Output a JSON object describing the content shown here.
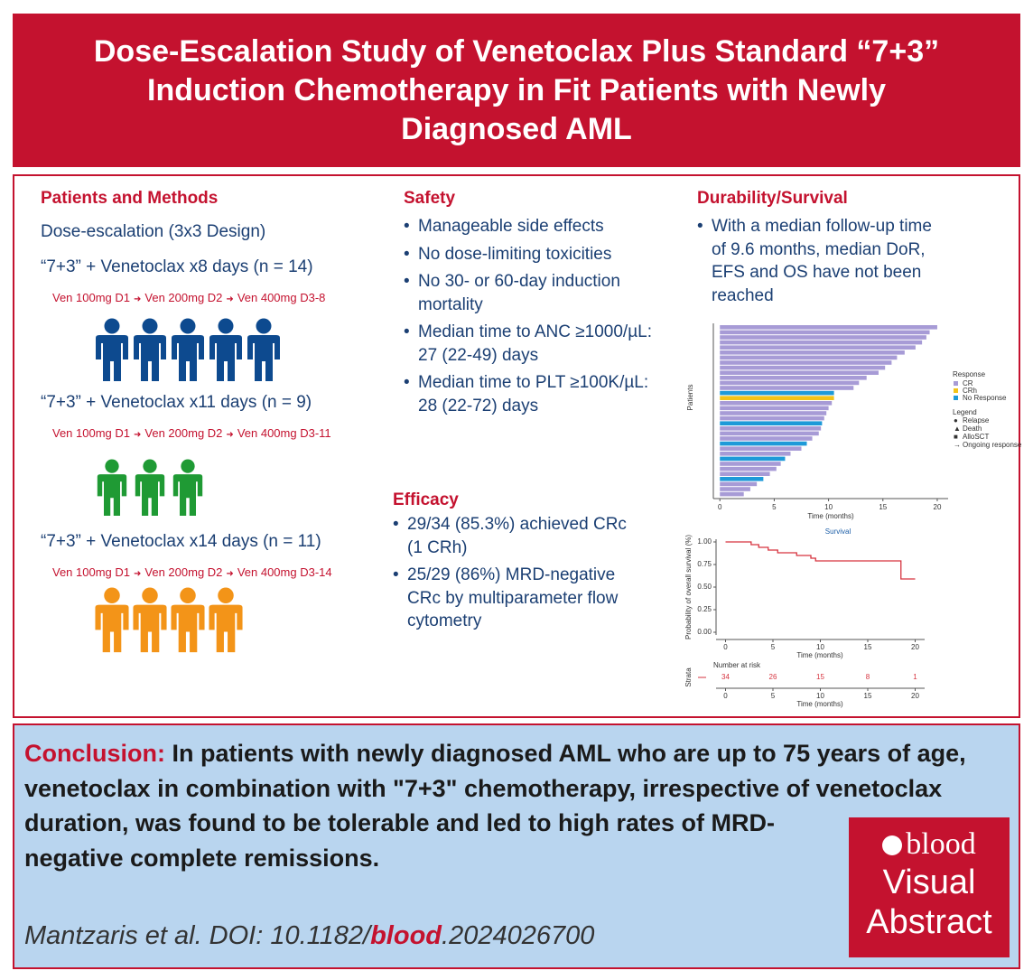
{
  "title": "Dose-Escalation Study of Venetoclax Plus Standard “7+3” Induction Chemotherapy in Fit Patients with Newly Diagnosed AML",
  "methods": {
    "heading": "Patients and Methods",
    "design": "Dose-escalation (3x3 Design)",
    "cohorts": [
      {
        "label": "“7+3” + Venetoclax x8 days (n = 14)",
        "schedule": [
          "Ven 100mg D1",
          "Ven 200mg D2",
          "Ven 400mg D3-8"
        ],
        "icons": 5,
        "color": "#0d4a8f"
      },
      {
        "label": "“7+3” + Venetoclax x11 days (n = 9)",
        "schedule": [
          "Ven 100mg D1",
          "Ven 200mg D2",
          "Ven 400mg D3-11"
        ],
        "icons": 3,
        "color": "#1f9a34"
      },
      {
        "label": "“7+3” + Venetoclax x14 days (n = 11)",
        "schedule": [
          "Ven 100mg D1",
          "Ven 200mg D2",
          "Ven 400mg D3-14"
        ],
        "icons": 4,
        "color": "#f39418"
      }
    ]
  },
  "safety": {
    "heading": "Safety",
    "items": [
      "Manageable side effects",
      "No dose-limiting toxicities",
      "No 30- or 60-day induction mortality",
      "Median time to ANC ≥1000/µL: 27 (22-49) days",
      "Median time to PLT ≥100K/µL: 28 (22-72) days"
    ]
  },
  "efficacy": {
    "heading": "Efficacy",
    "items": [
      "29/34 (85.3%) achieved CRc (1 CRh)",
      "25/29 (86%) MRD-negative CRc by multiparameter flow cytometry"
    ]
  },
  "durability": {
    "heading": "Durability/Survival",
    "items": [
      "With a median follow-up time of 9.6 months, median DoR, EFS and OS have not been reached"
    ]
  },
  "swimmer": {
    "type": "bar",
    "ylabel": "Patients",
    "xlabel": "Time (months)",
    "xlim": [
      -0.6,
      21
    ],
    "xticks": [
      0,
      5,
      10,
      15,
      20
    ],
    "values": [
      20,
      19.3,
      19,
      18.6,
      18,
      17,
      16.3,
      15.8,
      15.2,
      14.6,
      13.5,
      12.8,
      12.3,
      10.5,
      10.5,
      10.3,
      10,
      9.8,
      9.6,
      9.4,
      9.3,
      9.1,
      8.5,
      8,
      7.5,
      6.5,
      6,
      5.6,
      5.2,
      4.6,
      4,
      3.4,
      2.8,
      2.2
    ],
    "response": [
      0,
      0,
      0,
      0,
      0,
      0,
      0,
      0,
      0,
      0,
      0,
      0,
      0,
      2,
      1,
      0,
      0,
      0,
      0,
      2,
      0,
      0,
      0,
      2,
      0,
      0,
      2,
      0,
      0,
      0,
      2,
      0,
      0,
      0
    ],
    "legend_title": "Response",
    "responses": [
      {
        "name": "CR",
        "color": "#a79bd6"
      },
      {
        "name": "CRh",
        "color": "#f2c318"
      },
      {
        "name": "No Response",
        "color": "#1e9ad8"
      }
    ],
    "events_title": "Legend",
    "events": [
      "Relapse",
      "Death",
      "AlloSCT",
      "Ongoing response"
    ]
  },
  "survival": {
    "type": "line",
    "title": "Survival",
    "ylabel": "Probability of overall survival (%)",
    "xlabel": "Time (months)",
    "x": [
      0,
      2.7,
      3.5,
      4.5,
      5.5,
      7.5,
      9,
      9.5,
      18.5,
      20
    ],
    "y": [
      1,
      0.97,
      0.94,
      0.91,
      0.88,
      0.85,
      0.82,
      0.79,
      0.59,
      0.59
    ],
    "color": "#d6333f",
    "xlim": [
      -1,
      21
    ],
    "ylim": [
      -0.03,
      1.03
    ],
    "xticks": [
      0,
      5,
      10,
      15,
      20
    ],
    "yticks": [
      {
        "value": 0,
        "label": "0.00"
      },
      {
        "value": 0.25,
        "label": "0.25"
      },
      {
        "value": 0.5,
        "label": "0.50"
      },
      {
        "value": 0.75,
        "label": "0.75"
      },
      {
        "value": 1,
        "label": "1.00"
      }
    ],
    "risk": {
      "title": "Number at risk",
      "ylabel": "Strata",
      "times": [
        0,
        5,
        10,
        15,
        20
      ],
      "counts": [
        34,
        26,
        15,
        8,
        1
      ],
      "xlabel": "Time (months)"
    }
  },
  "conclusion": {
    "heading": "Conclusion:",
    "text": "In patients with newly diagnosed AML who are up to 75 years of age, venetoclax in combination with \"7+3\" chemotherapy, irrespective of venetoclax duration, was found to be tolerable and led to high rates of MRD-negative complete remissions."
  },
  "citation": {
    "prefix": "Mantzaris et al. DOI: 10.1182/",
    "journal": "blood",
    "suffix": ".2024026700"
  },
  "logo": {
    "name": "blood",
    "line1": "Visual",
    "line2": "Abstract"
  }
}
